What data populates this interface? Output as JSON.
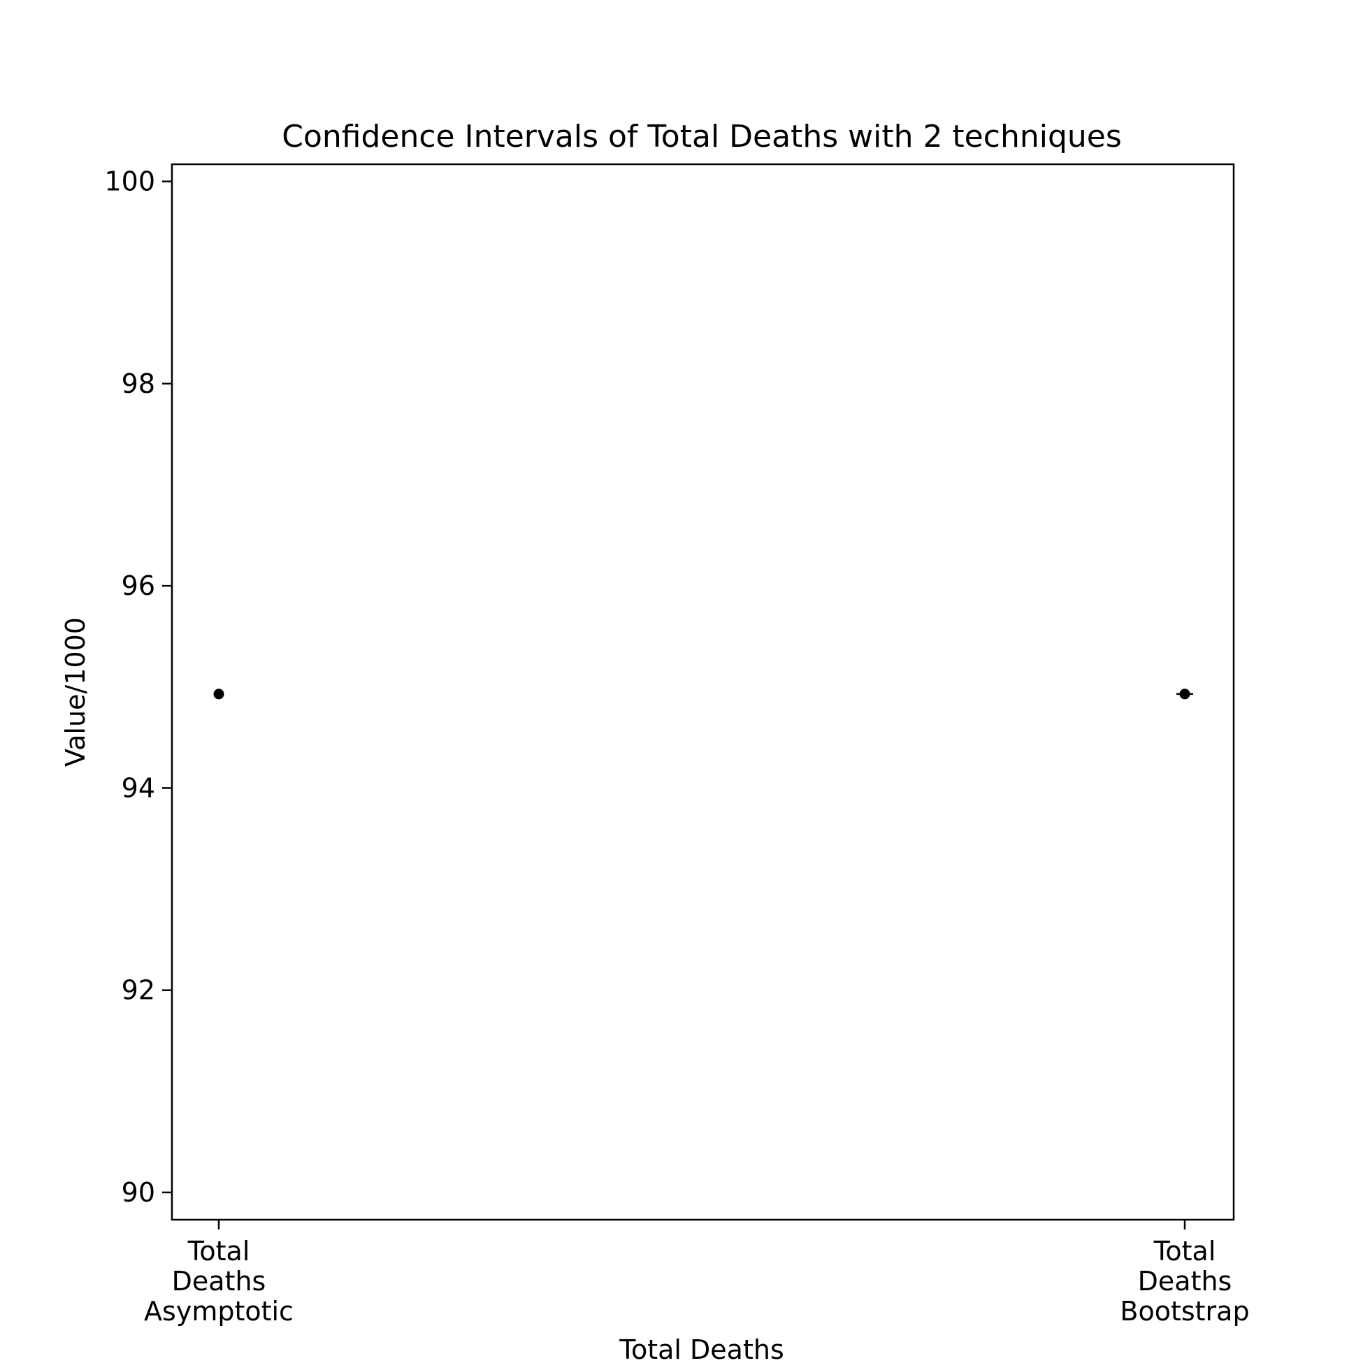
{
  "chart_data": {
    "type": "scatter",
    "title": "Confidence Intervals of Total Deaths with 2 techniques",
    "xlabel": "Total Deaths",
    "ylabel": "Value/1000",
    "ylim": [
      89.73,
      100.17
    ],
    "yticks": [
      90,
      92,
      94,
      96,
      98,
      100
    ],
    "ytick_labels": [
      "90",
      "92",
      "94",
      "96",
      "98",
      "100"
    ],
    "categories": [
      [
        "Total",
        "Deaths",
        "Asymptotic"
      ],
      [
        "Total",
        "Deaths",
        "Bootstrap"
      ]
    ],
    "points": [
      {
        "y": 94.93,
        "err_low": 94.92,
        "err_high": 94.94
      },
      {
        "y": 94.93,
        "err_low": 94.92,
        "err_high": 94.94
      }
    ],
    "marker_color": "#000000",
    "grid": false,
    "legend": null
  }
}
